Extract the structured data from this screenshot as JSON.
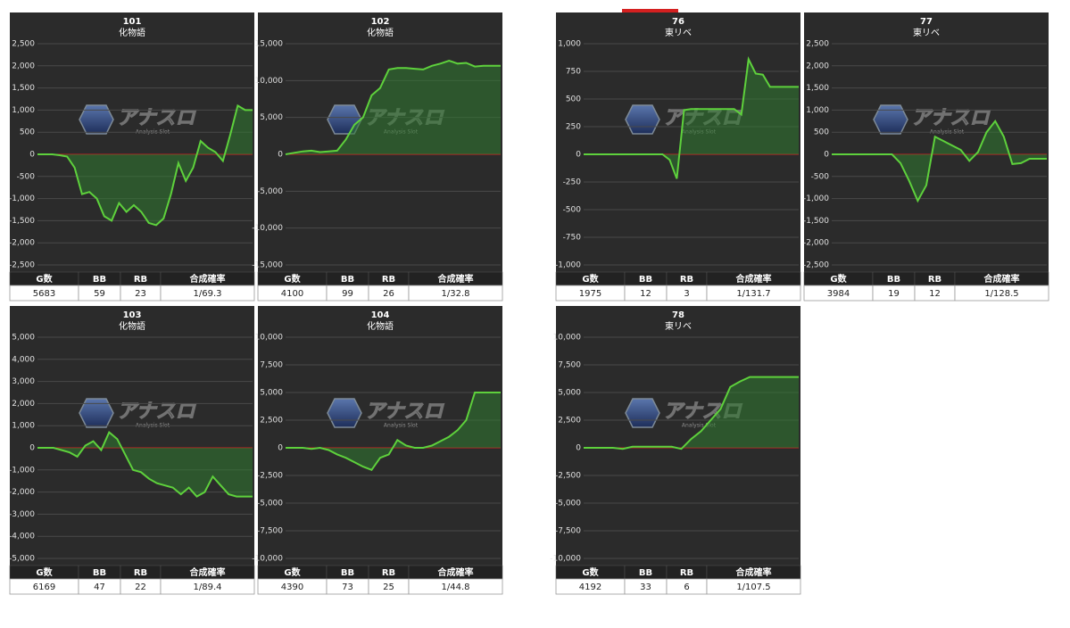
{
  "table_headers": [
    "G数",
    "BB",
    "RB",
    "合成確率"
  ],
  "watermark": {
    "title": "アナスロ",
    "subtitle": "Analysis Slot"
  },
  "chart_data": [
    {
      "type": "line",
      "title": "101",
      "subtitle": "化物語",
      "color": "#5ed13c",
      "area_color": "#2f7a2f",
      "zero_line_color": "#cc2222",
      "values": [
        0,
        0,
        0,
        -20,
        -50,
        -300,
        -900,
        -850,
        -1000,
        -1400,
        -1500,
        -1100,
        -1300,
        -1150,
        -1300,
        -1550,
        -1600,
        -1450,
        -900,
        -200,
        -600,
        -300,
        300,
        150,
        50,
        -150,
        450,
        1100,
        1000,
        1000
      ],
      "ylim": [
        -2500,
        2500
      ],
      "yticks": [
        {
          "value": 2500,
          "label": "2,500"
        },
        {
          "value": 2000,
          "label": "2,000"
        },
        {
          "value": 1500,
          "label": "1,500"
        },
        {
          "value": 1000,
          "label": "1,000"
        },
        500,
        0,
        -500,
        {
          "value": -1000,
          "label": "-1,000"
        },
        {
          "value": -1500,
          "label": "-1,500"
        },
        {
          "value": -2000,
          "label": "-2,000"
        },
        {
          "value": -2500,
          "label": "-2,500"
        }
      ],
      "table": [
        5683,
        59,
        23,
        "1/69.3"
      ]
    },
    {
      "type": "line",
      "title": "102",
      "subtitle": "化物語",
      "color": "#5ed13c",
      "area_color": "#2f7a2f",
      "zero_line_color": "#cc2222",
      "values": [
        0,
        200,
        400,
        500,
        300,
        400,
        500,
        2000,
        4000,
        5000,
        8000,
        9000,
        11500,
        11700,
        11700,
        11600,
        11500,
        12000,
        12300,
        12700,
        12300,
        12400,
        11900,
        12000,
        12000,
        12000
      ],
      "ylim": [
        -15000,
        15000
      ],
      "yticks": [
        {
          "value": 15000,
          "label": "15,000"
        },
        {
          "value": 10000,
          "label": "10,000"
        },
        {
          "value": 5000,
          "label": "5,000"
        },
        0,
        {
          "value": -5000,
          "label": "-5,000"
        },
        {
          "value": -10000,
          "label": "-10,000"
        },
        {
          "value": -15000,
          "label": "-15,000"
        }
      ],
      "table": [
        4100,
        99,
        26,
        "1/32.8"
      ]
    },
    {
      "type": "line",
      "title": "103",
      "subtitle": "化物語",
      "color": "#5ed13c",
      "area_color": "#2f7a2f",
      "zero_line_color": "#cc2222",
      "values": [
        0,
        0,
        0,
        -100,
        -200,
        -400,
        100,
        300,
        -100,
        700,
        400,
        -300,
        -1000,
        -1100,
        -1400,
        -1600,
        -1700,
        -1800,
        -2100,
        -1800,
        -2200,
        -2000,
        -1300,
        -1700,
        -2100,
        -2200,
        -2200,
        -2200
      ],
      "ylim": [
        -5000,
        5000
      ],
      "yticks": [
        {
          "value": 5000,
          "label": "5,000"
        },
        {
          "value": 4000,
          "label": "4,000"
        },
        {
          "value": 3000,
          "label": "3,000"
        },
        {
          "value": 2000,
          "label": "2,000"
        },
        {
          "value": 1000,
          "label": "1,000"
        },
        0,
        {
          "value": -1000,
          "label": "-1,000"
        },
        {
          "value": -2000,
          "label": "-2,000"
        },
        {
          "value": -3000,
          "label": "-3,000"
        },
        {
          "value": -4000,
          "label": "-4,000"
        },
        {
          "value": -5000,
          "label": "-5,000"
        }
      ],
      "table": [
        6169,
        47,
        22,
        "1/89.4"
      ]
    },
    {
      "type": "line",
      "title": "104",
      "subtitle": "化物語",
      "color": "#5ed13c",
      "area_color": "#2f7a2f",
      "zero_line_color": "#cc2222",
      "values": [
        0,
        0,
        0,
        -100,
        0,
        -200,
        -600,
        -900,
        -1300,
        -1700,
        -2000,
        -900,
        -600,
        700,
        200,
        0,
        0,
        200,
        600,
        1000,
        1600,
        2500,
        5000,
        5000,
        5000,
        5000
      ],
      "ylim": [
        -10000,
        10000
      ],
      "yticks": [
        {
          "value": 10000,
          "label": "10,000"
        },
        {
          "value": 7500,
          "label": "7,500"
        },
        {
          "value": 5000,
          "label": "5,000"
        },
        {
          "value": 2500,
          "label": "2,500"
        },
        0,
        {
          "value": -2500,
          "label": "-2,500"
        },
        {
          "value": -5000,
          "label": "-5,000"
        },
        {
          "value": -7500,
          "label": "-7,500"
        },
        {
          "value": -10000,
          "label": "-10,000"
        }
      ],
      "table": [
        4390,
        73,
        25,
        "1/44.8"
      ]
    },
    {
      "type": "line",
      "title": "76",
      "subtitle": "東リベ",
      "color": "#5ed13c",
      "area_color": "#2f7a2f",
      "zero_line_color": "#cc2222",
      "values": [
        0,
        0,
        0,
        0,
        0,
        0,
        0,
        0,
        0,
        0,
        0,
        0,
        -50,
        -220,
        400,
        410,
        410,
        410,
        410,
        410,
        410,
        410,
        360,
        860,
        730,
        720,
        610,
        610,
        610,
        610,
        610
      ],
      "ylim": [
        -1000,
        1000
      ],
      "yticks": [
        {
          "value": 1000,
          "label": "1,000"
        },
        750,
        500,
        250,
        0,
        -250,
        -500,
        -750,
        {
          "value": -1000,
          "label": "-1,000"
        }
      ],
      "table": [
        1975,
        12,
        3,
        "1/131.7"
      ]
    },
    {
      "type": "line",
      "title": "77",
      "subtitle": "東リベ",
      "color": "#5ed13c",
      "area_color": "#2f7a2f",
      "zero_line_color": "#cc2222",
      "values": [
        0,
        0,
        0,
        0,
        0,
        0,
        0,
        0,
        -200,
        -600,
        -1050,
        -700,
        400,
        300,
        200,
        100,
        -150,
        50,
        500,
        750,
        400,
        -220,
        -200,
        -100,
        -100,
        -100
      ],
      "ylim": [
        -2500,
        2500
      ],
      "yticks": [
        {
          "value": 2500,
          "label": "2,500"
        },
        {
          "value": 2000,
          "label": "2,000"
        },
        {
          "value": 1500,
          "label": "1,500"
        },
        {
          "value": 1000,
          "label": "1,000"
        },
        500,
        0,
        -500,
        {
          "value": -1000,
          "label": "-1,000"
        },
        {
          "value": -1500,
          "label": "-1,500"
        },
        {
          "value": -2000,
          "label": "-2,000"
        },
        {
          "value": -2500,
          "label": "-2,500"
        }
      ],
      "table": [
        3984,
        19,
        12,
        "1/128.5"
      ]
    },
    {
      "type": "line",
      "title": "78",
      "subtitle": "東リベ",
      "color": "#5ed13c",
      "area_color": "#2f7a2f",
      "zero_line_color": "#cc2222",
      "values": [
        0,
        0,
        0,
        0,
        -100,
        100,
        100,
        100,
        100,
        100,
        -100,
        800,
        1500,
        2500,
        3500,
        5500,
        6000,
        6400,
        6400,
        6400,
        6400,
        6400,
        6400
      ],
      "ylim": [
        -10000,
        10000
      ],
      "yticks": [
        {
          "value": 10000,
          "label": "10,000"
        },
        {
          "value": 7500,
          "label": "7,500"
        },
        {
          "value": 5000,
          "label": "5,000"
        },
        {
          "value": 2500,
          "label": "2,500"
        },
        0,
        {
          "value": -2500,
          "label": "-2,500"
        },
        {
          "value": -5000,
          "label": "-5,000"
        },
        {
          "value": -7500,
          "label": "-7,500"
        },
        {
          "value": -10000,
          "label": "-10,000"
        }
      ],
      "table": [
        4192,
        33,
        6,
        "1/107.5"
      ]
    }
  ]
}
